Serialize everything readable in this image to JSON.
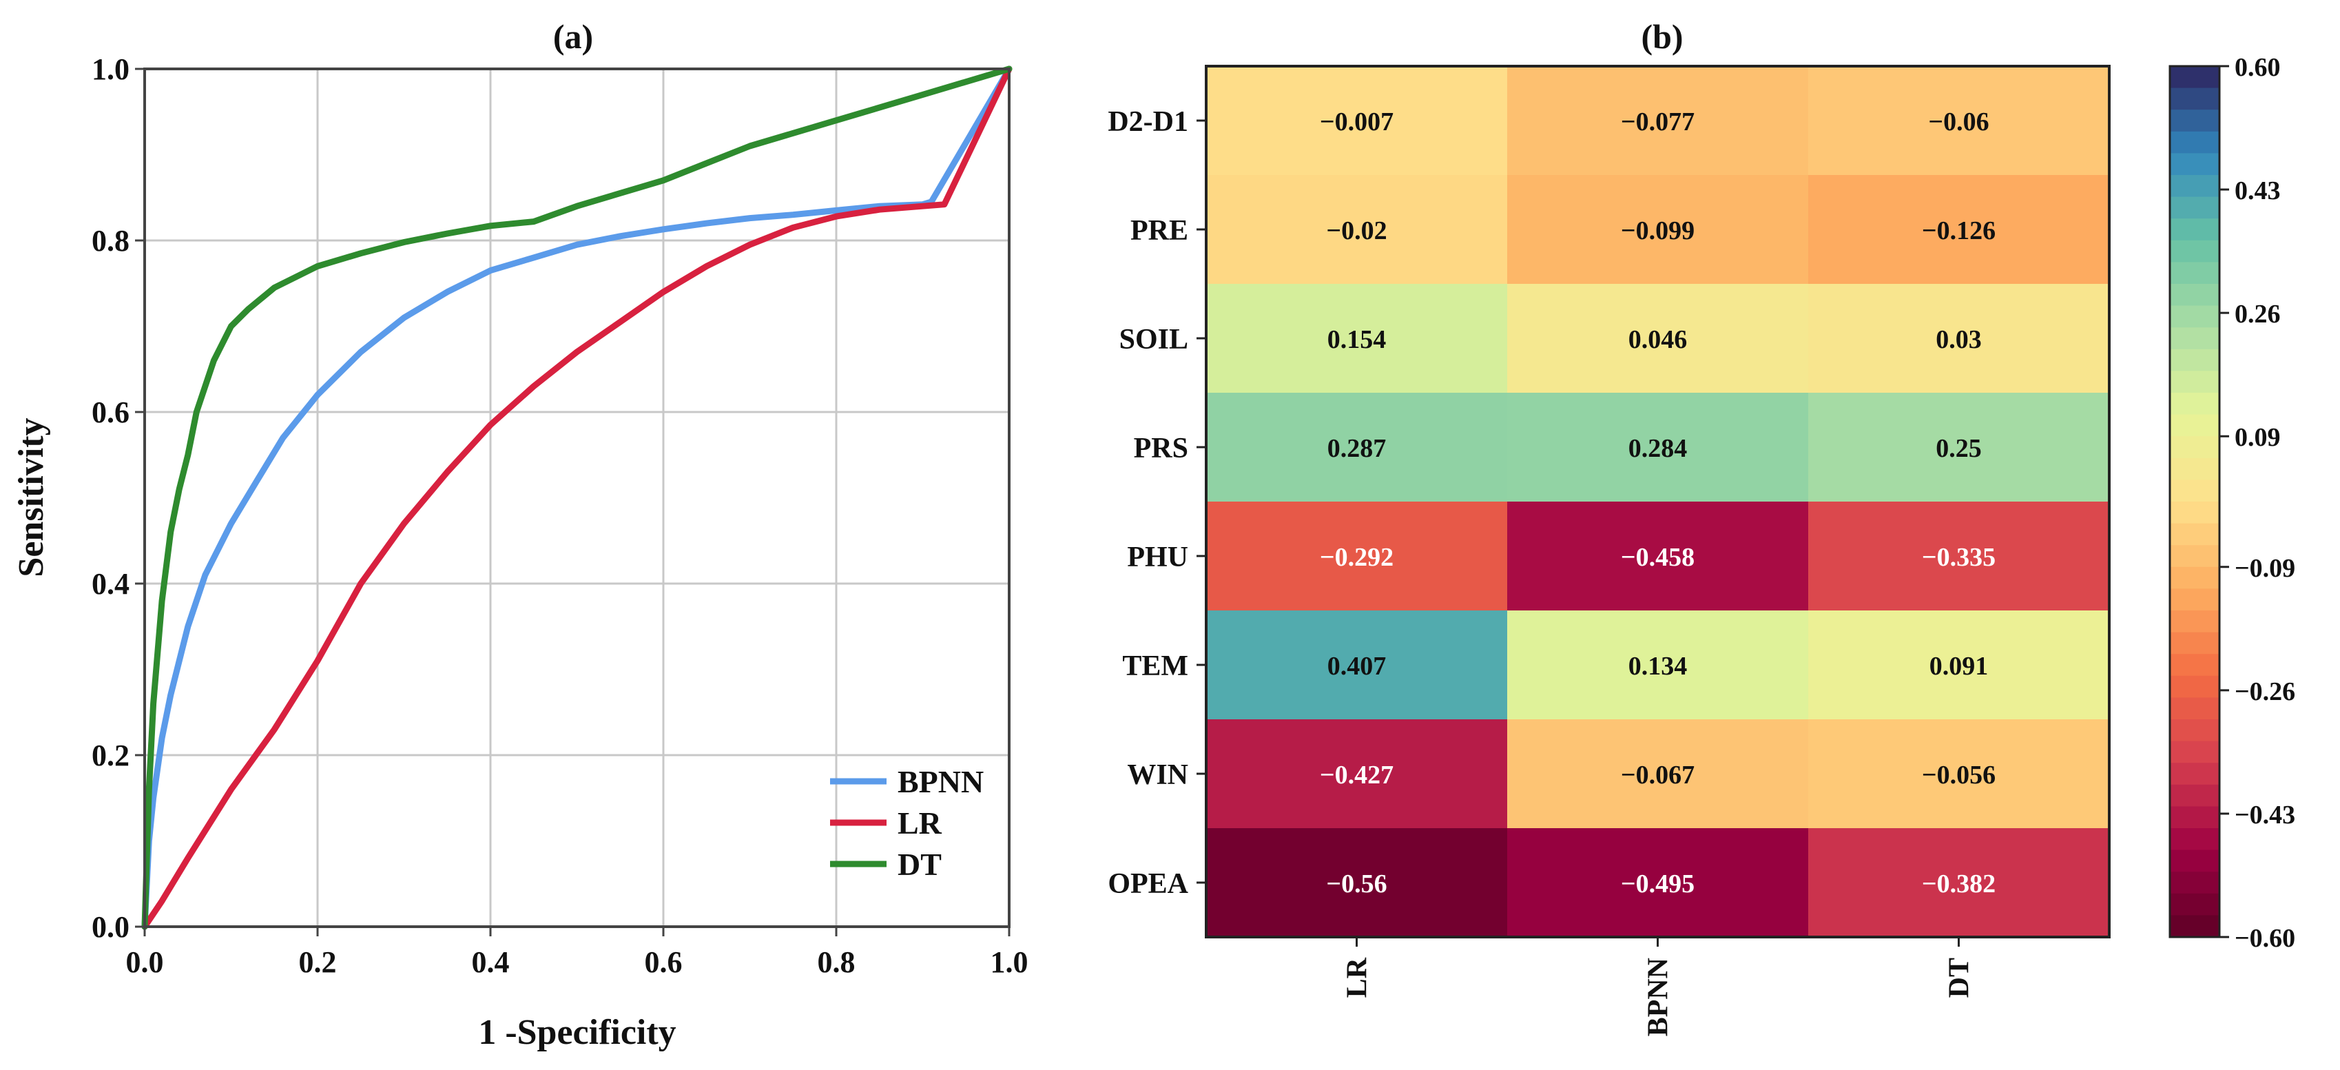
{
  "chart_data": [
    {
      "type": "line",
      "panel_label": "(a)",
      "xlabel": "1 -Specificity",
      "ylabel": "Sensitivity",
      "xlim": [
        0,
        1
      ],
      "ylim": [
        0,
        1
      ],
      "xticks": [
        "0.0",
        "0.2",
        "0.4",
        "0.6",
        "0.8",
        "1.0"
      ],
      "yticks": [
        "0.0",
        "0.2",
        "0.4",
        "0.6",
        "0.8",
        "1.0"
      ],
      "grid": true,
      "legend_position": "bottom-right",
      "series": [
        {
          "name": "BPNN",
          "color": "#5b9bea",
          "x": [
            0,
            0.005,
            0.01,
            0.02,
            0.03,
            0.05,
            0.07,
            0.1,
            0.13,
            0.16,
            0.2,
            0.25,
            0.3,
            0.35,
            0.4,
            0.45,
            0.5,
            0.55,
            0.6,
            0.65,
            0.7,
            0.75,
            0.8,
            0.85,
            0.9,
            0.91,
            1.0
          ],
          "y": [
            0,
            0.1,
            0.15,
            0.22,
            0.27,
            0.35,
            0.41,
            0.47,
            0.52,
            0.57,
            0.62,
            0.67,
            0.71,
            0.74,
            0.765,
            0.78,
            0.795,
            0.805,
            0.813,
            0.82,
            0.826,
            0.83,
            0.835,
            0.84,
            0.842,
            0.845,
            1.0
          ]
        },
        {
          "name": "LR",
          "color": "#d8213f",
          "x": [
            0,
            0.02,
            0.05,
            0.1,
            0.15,
            0.2,
            0.25,
            0.3,
            0.35,
            0.4,
            0.45,
            0.5,
            0.55,
            0.6,
            0.65,
            0.7,
            0.75,
            0.8,
            0.85,
            0.9,
            0.925,
            1.0
          ],
          "y": [
            0,
            0.03,
            0.08,
            0.16,
            0.23,
            0.31,
            0.4,
            0.47,
            0.53,
            0.585,
            0.63,
            0.67,
            0.705,
            0.74,
            0.77,
            0.795,
            0.815,
            0.828,
            0.836,
            0.84,
            0.842,
            1.0
          ]
        },
        {
          "name": "DT",
          "color": "#2e8b2e",
          "x": [
            0,
            0.005,
            0.01,
            0.02,
            0.03,
            0.04,
            0.05,
            0.06,
            0.08,
            0.1,
            0.12,
            0.15,
            0.2,
            0.25,
            0.3,
            0.35,
            0.4,
            0.45,
            0.5,
            0.6,
            0.7,
            0.8,
            0.9,
            1.0
          ],
          "y": [
            0,
            0.16,
            0.26,
            0.38,
            0.46,
            0.51,
            0.55,
            0.6,
            0.66,
            0.7,
            0.72,
            0.745,
            0.77,
            0.785,
            0.798,
            0.808,
            0.817,
            0.822,
            0.84,
            0.87,
            0.91,
            0.94,
            0.97,
            1.0
          ]
        }
      ]
    },
    {
      "type": "heatmap",
      "panel_label": "(b)",
      "rows": [
        "D2-D1",
        "PRE",
        "SOIL",
        "PRS",
        "PHU",
        "TEM",
        "WIN",
        "OPEA"
      ],
      "columns": [
        "LR",
        "BPNN",
        "DT"
      ],
      "values": [
        [
          -0.007,
          -0.077,
          -0.06
        ],
        [
          -0.02,
          -0.099,
          -0.126
        ],
        [
          0.154,
          0.046,
          0.03
        ],
        [
          0.287,
          0.284,
          0.25
        ],
        [
          -0.292,
          -0.458,
          -0.335
        ],
        [
          0.407,
          0.134,
          0.091
        ],
        [
          -0.427,
          -0.067,
          -0.056
        ],
        [
          -0.56,
          -0.495,
          -0.382
        ]
      ],
      "value_labels": [
        [
          "−0.007",
          "−0.077",
          "−0.06"
        ],
        [
          "−0.02",
          "−0.099",
          "−0.126"
        ],
        [
          "0.154",
          "0.046",
          "0.03"
        ],
        [
          "0.287",
          "0.284",
          "0.25"
        ],
        [
          "−0.292",
          "−0.458",
          "−0.335"
        ],
        [
          "0.407",
          "0.134",
          "0.091"
        ],
        [
          "−0.427",
          "−0.067",
          "−0.056"
        ],
        [
          "−0.56",
          "−0.495",
          "−0.382"
        ]
      ],
      "colorbar": {
        "min": -0.6,
        "max": 0.6,
        "ticks": [
          0.6,
          0.43,
          0.26,
          0.09,
          -0.09,
          -0.26,
          -0.43,
          -0.6
        ],
        "tick_labels": [
          "0.60",
          "0.43",
          "0.26",
          "0.09",
          "−0.09",
          "−0.26",
          "−0.43",
          "−0.60"
        ],
        "colormap": "Spectral"
      }
    }
  ]
}
